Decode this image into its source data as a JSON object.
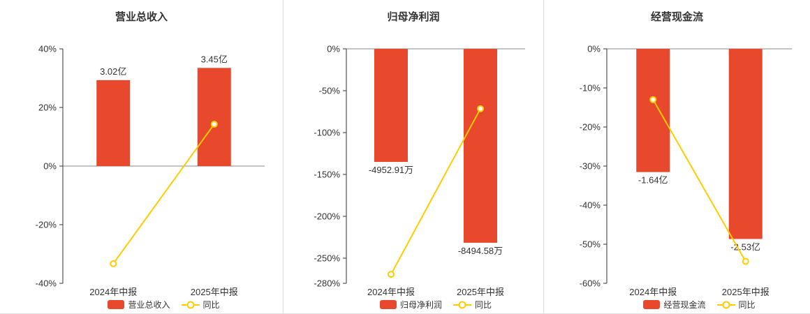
{
  "colors": {
    "bar": "#e8492c",
    "line": "#ffcc00",
    "axis": "#333333",
    "zero_line": "#888888",
    "text": "#333333",
    "separator": "#dddddd"
  },
  "chart_data": [
    {
      "type": "bar",
      "title": "营业总收入",
      "categories": [
        "2024年中报",
        "2025年中报"
      ],
      "bar_series": {
        "name": "营业总收入",
        "values": [
          3.02,
          3.45
        ],
        "unit": "亿",
        "labels": [
          "3.02亿",
          "3.45亿"
        ]
      },
      "line_series": {
        "name": "同比",
        "values": [
          -33.3,
          14.3
        ],
        "unit": "%"
      },
      "pct_axis": {
        "min": -40,
        "max": 40,
        "ticks": [
          40,
          20,
          0,
          -20,
          -40
        ]
      },
      "bar_axis": {
        "min": -4.12,
        "max": 4.12
      },
      "legend_position": "bottom",
      "grid": "off"
    },
    {
      "type": "bar",
      "title": "归母净利润",
      "categories": [
        "2024年中报",
        "2025年中报"
      ],
      "bar_series": {
        "name": "归母净利润",
        "values": [
          -4952.91,
          -8494.58
        ],
        "unit": "万",
        "labels": [
          "-4952.91万",
          "-8494.58万"
        ]
      },
      "line_series": {
        "name": "同比",
        "values": [
          -269.3,
          -71.5
        ],
        "unit": "%"
      },
      "pct_axis": {
        "min": -280,
        "max": 0,
        "ticks": [
          0,
          -50,
          -100,
          -150,
          -200,
          -250,
          -280
        ]
      },
      "bar_axis": {
        "min": -10270,
        "max": 0
      },
      "legend_position": "bottom",
      "grid": "off"
    },
    {
      "type": "bar",
      "title": "经营现金流",
      "categories": [
        "2024年中报",
        "2025年中报"
      ],
      "bar_series": {
        "name": "经营现金流",
        "values": [
          -1.64,
          -2.53
        ],
        "unit": "亿",
        "labels": [
          "-1.64亿",
          "-2.53亿"
        ]
      },
      "line_series": {
        "name": "同比",
        "values": [
          -13.0,
          -54.4
        ],
        "unit": "%"
      },
      "pct_axis": {
        "min": -60,
        "max": 0,
        "ticks": [
          0,
          -10,
          -20,
          -30,
          -40,
          -50,
          -60
        ]
      },
      "bar_axis": {
        "min": -3.12,
        "max": 0
      },
      "legend_position": "bottom",
      "grid": "off"
    }
  ]
}
